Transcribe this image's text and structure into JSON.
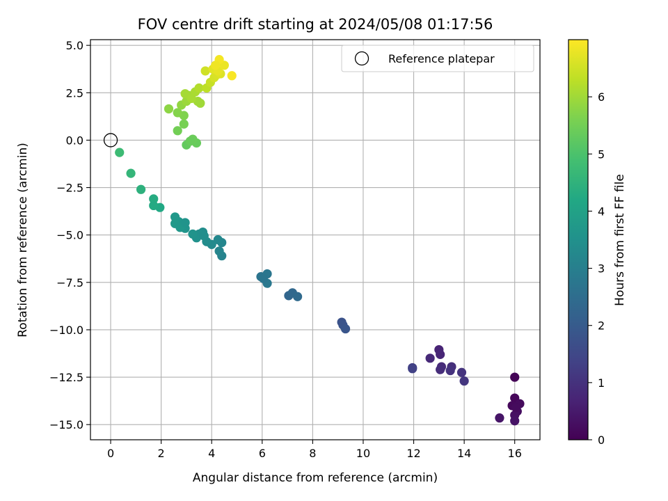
{
  "chart_data": {
    "type": "scatter",
    "title": "FOV centre drift starting at 2024/05/08 01:17:56",
    "xlabel": "Angular distance from reference (arcmin)",
    "ylabel": "Rotation from reference (arcmin)",
    "xlim": [
      -0.8,
      17.0
    ],
    "ylim": [
      -15.8,
      5.3
    ],
    "x_ticks": [
      0,
      2,
      4,
      6,
      8,
      10,
      12,
      14,
      16
    ],
    "x_tick_labels": [
      "0",
      "2",
      "4",
      "6",
      "8",
      "10",
      "12",
      "14",
      "16"
    ],
    "y_ticks": [
      5.0,
      2.5,
      0.0,
      -2.5,
      -5.0,
      -7.5,
      -10.0,
      -12.5,
      -15.0
    ],
    "y_tick_labels": [
      "5.0",
      "2.5",
      "0.0",
      "−2.5",
      "−5.0",
      "−7.5",
      "−10.0",
      "−12.5",
      "−15.0"
    ],
    "grid": true,
    "legend": {
      "placement": "top-right",
      "entries": [
        {
          "label": "Reference platepar",
          "marker": "open-circle"
        }
      ]
    },
    "reference_point": {
      "x": 0.0,
      "y": 0.0
    },
    "colorbar": {
      "label": "Hours from first FF file",
      "colormap": "viridis",
      "range": [
        0,
        7.0
      ],
      "ticks": [
        0,
        1,
        2,
        3,
        4,
        5,
        6
      ],
      "tick_labels": [
        "0",
        "1",
        "2",
        "3",
        "4",
        "5",
        "6"
      ]
    },
    "points": [
      {
        "x": 16.0,
        "y": -12.5,
        "h": 0.05
      },
      {
        "x": 16.0,
        "y": -13.6,
        "h": 0.1
      },
      {
        "x": 15.9,
        "y": -14.0,
        "h": 0.15
      },
      {
        "x": 16.2,
        "y": -13.9,
        "h": 0.2
      },
      {
        "x": 16.1,
        "y": -14.3,
        "h": 0.25
      },
      {
        "x": 16.0,
        "y": -14.5,
        "h": 0.3
      },
      {
        "x": 16.0,
        "y": -14.8,
        "h": 0.35
      },
      {
        "x": 15.4,
        "y": -14.65,
        "h": 0.4
      },
      {
        "x": 16.05,
        "y": -14.1,
        "h": 0.2
      },
      {
        "x": 13.0,
        "y": -11.05,
        "h": 0.7
      },
      {
        "x": 13.05,
        "y": -11.3,
        "h": 0.75
      },
      {
        "x": 12.65,
        "y": -11.5,
        "h": 0.8
      },
      {
        "x": 13.1,
        "y": -11.95,
        "h": 0.85
      },
      {
        "x": 13.05,
        "y": -12.1,
        "h": 0.9
      },
      {
        "x": 13.5,
        "y": -11.95,
        "h": 0.95
      },
      {
        "x": 13.45,
        "y": -12.15,
        "h": 1.0
      },
      {
        "x": 13.9,
        "y": -12.25,
        "h": 1.05
      },
      {
        "x": 14.0,
        "y": -12.7,
        "h": 1.1
      },
      {
        "x": 11.95,
        "y": -12.0,
        "h": 1.3
      },
      {
        "x": 11.95,
        "y": -12.05,
        "h": 1.35
      },
      {
        "x": 9.15,
        "y": -9.6,
        "h": 1.75
      },
      {
        "x": 9.2,
        "y": -9.75,
        "h": 1.8
      },
      {
        "x": 9.3,
        "y": -9.95,
        "h": 1.85
      },
      {
        "x": 7.05,
        "y": -8.2,
        "h": 2.3
      },
      {
        "x": 7.2,
        "y": -8.05,
        "h": 2.35
      },
      {
        "x": 7.4,
        "y": -8.25,
        "h": 2.4
      },
      {
        "x": 5.95,
        "y": -7.2,
        "h": 2.7
      },
      {
        "x": 6.2,
        "y": -7.05,
        "h": 2.75
      },
      {
        "x": 6.2,
        "y": -7.55,
        "h": 2.8
      },
      {
        "x": 6.05,
        "y": -7.3,
        "h": 2.72
      },
      {
        "x": 4.4,
        "y": -5.4,
        "h": 3.2
      },
      {
        "x": 4.25,
        "y": -5.25,
        "h": 3.25
      },
      {
        "x": 4.4,
        "y": -6.1,
        "h": 3.1
      },
      {
        "x": 4.3,
        "y": -5.85,
        "h": 3.15
      },
      {
        "x": 4.0,
        "y": -5.5,
        "h": 3.3
      },
      {
        "x": 3.8,
        "y": -5.35,
        "h": 3.35
      },
      {
        "x": 3.65,
        "y": -4.85,
        "h": 3.4
      },
      {
        "x": 3.5,
        "y": -4.95,
        "h": 3.45
      },
      {
        "x": 3.4,
        "y": -5.15,
        "h": 3.5
      },
      {
        "x": 3.25,
        "y": -4.95,
        "h": 3.55
      },
      {
        "x": 2.95,
        "y": -4.65,
        "h": 3.6
      },
      {
        "x": 2.85,
        "y": -4.5,
        "h": 3.62
      },
      {
        "x": 2.7,
        "y": -4.3,
        "h": 3.65
      },
      {
        "x": 2.55,
        "y": -4.05,
        "h": 3.7
      },
      {
        "x": 2.55,
        "y": -4.4,
        "h": 3.72
      },
      {
        "x": 2.75,
        "y": -4.6,
        "h": 3.68
      },
      {
        "x": 2.95,
        "y": -4.35,
        "h": 3.58
      },
      {
        "x": 3.7,
        "y": -5.05,
        "h": 3.42
      },
      {
        "x": 1.95,
        "y": -3.55,
        "h": 4.2
      },
      {
        "x": 1.7,
        "y": -3.1,
        "h": 4.3
      },
      {
        "x": 1.7,
        "y": -3.45,
        "h": 4.25
      },
      {
        "x": 1.2,
        "y": -2.6,
        "h": 4.45
      },
      {
        "x": 0.8,
        "y": -1.75,
        "h": 4.6
      },
      {
        "x": 0.35,
        "y": -0.65,
        "h": 4.75
      },
      {
        "x": 3.0,
        "y": -0.25,
        "h": 5.3
      },
      {
        "x": 3.4,
        "y": -0.15,
        "h": 5.35
      },
      {
        "x": 3.25,
        "y": 0.05,
        "h": 5.4
      },
      {
        "x": 3.15,
        "y": -0.05,
        "h": 5.38
      },
      {
        "x": 2.65,
        "y": 0.5,
        "h": 5.5
      },
      {
        "x": 2.9,
        "y": 0.85,
        "h": 5.55
      },
      {
        "x": 2.9,
        "y": 1.3,
        "h": 5.65
      },
      {
        "x": 2.65,
        "y": 1.45,
        "h": 5.7
      },
      {
        "x": 2.3,
        "y": 1.65,
        "h": 5.8
      },
      {
        "x": 2.8,
        "y": 1.85,
        "h": 5.85
      },
      {
        "x": 3.0,
        "y": 2.05,
        "h": 5.95
      },
      {
        "x": 3.1,
        "y": 2.35,
        "h": 6.0
      },
      {
        "x": 2.95,
        "y": 2.45,
        "h": 6.05
      },
      {
        "x": 3.35,
        "y": 2.55,
        "h": 6.1
      },
      {
        "x": 3.45,
        "y": 2.05,
        "h": 6.02
      },
      {
        "x": 3.55,
        "y": 1.95,
        "h": 6.0
      },
      {
        "x": 3.2,
        "y": 2.2,
        "h": 6.08
      },
      {
        "x": 3.5,
        "y": 2.75,
        "h": 6.2
      },
      {
        "x": 3.8,
        "y": 2.75,
        "h": 6.3
      },
      {
        "x": 3.95,
        "y": 3.05,
        "h": 6.4
      },
      {
        "x": 3.75,
        "y": 3.65,
        "h": 6.5
      },
      {
        "x": 4.1,
        "y": 3.3,
        "h": 6.55
      },
      {
        "x": 4.2,
        "y": 3.45,
        "h": 6.6
      },
      {
        "x": 4.35,
        "y": 3.5,
        "h": 6.65
      },
      {
        "x": 4.05,
        "y": 3.75,
        "h": 6.7
      },
      {
        "x": 4.25,
        "y": 3.65,
        "h": 6.75
      },
      {
        "x": 4.5,
        "y": 3.95,
        "h": 6.8
      },
      {
        "x": 4.3,
        "y": 4.25,
        "h": 6.9
      },
      {
        "x": 4.8,
        "y": 3.4,
        "h": 6.95
      },
      {
        "x": 4.15,
        "y": 3.95,
        "h": 6.85
      }
    ]
  }
}
